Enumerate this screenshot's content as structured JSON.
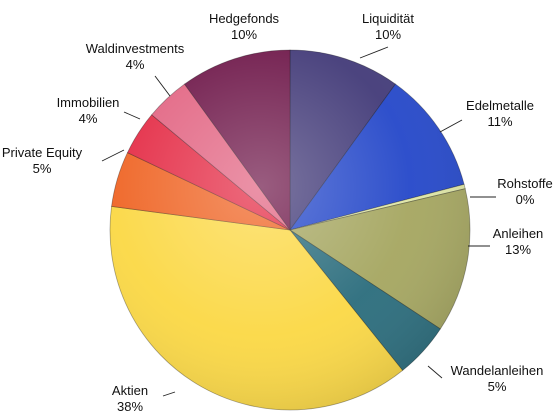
{
  "chart_data": {
    "type": "pie",
    "title": "",
    "slices": [
      {
        "label": "Liquidität",
        "value": 10,
        "value_label": "10%",
        "color": "#423a78"
      },
      {
        "label": "Edelmetalle",
        "value": 11,
        "value_label": "11%",
        "color": "#2447c9"
      },
      {
        "label": "Rohstoffe",
        "value": 0.4,
        "value_label": "0%",
        "color": "#dfe6a6"
      },
      {
        "label": "Anleihen",
        "value": 13,
        "value_label": "13%",
        "color": "#a5a660"
      },
      {
        "label": "Wandelanleihen",
        "value": 5,
        "value_label": "5%",
        "color": "#2a6c7c"
      },
      {
        "label": "Aktien",
        "value": 38,
        "value_label": "38%",
        "color": "#fbd844"
      },
      {
        "label": "Private Equity",
        "value": 5,
        "value_label": "5%",
        "color": "#ef6424"
      },
      {
        "label": "Immobilien",
        "value": 4,
        "value_label": "4%",
        "color": "#e42b45"
      },
      {
        "label": "Waldinvestments",
        "value": 4,
        "value_label": "4%",
        "color": "#e26482"
      },
      {
        "label": "Hedgefonds",
        "value": 10,
        "value_label": "10%",
        "color": "#6e1749"
      }
    ],
    "start_angle": "12 o'clock",
    "direction": "clockwise",
    "legend": "none"
  }
}
